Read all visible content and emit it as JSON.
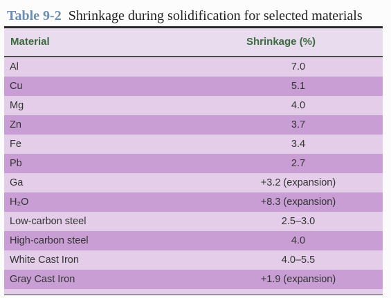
{
  "caption": {
    "number": "Table 9-2",
    "title": "Shrinkage during solidification for selected materials"
  },
  "table": {
    "headers": [
      "Material",
      "Shrinkage (%)"
    ],
    "rows": [
      {
        "material": "Al",
        "shrinkage": "7.0"
      },
      {
        "material": "Cu",
        "shrinkage": "5.1"
      },
      {
        "material": "Mg",
        "shrinkage": "4.0"
      },
      {
        "material": "Zn",
        "shrinkage": "3.7"
      },
      {
        "material": "Fe",
        "shrinkage": "3.4"
      },
      {
        "material": "Pb",
        "shrinkage": "2.7"
      },
      {
        "material": "Ga",
        "shrinkage": "+3.2 (expansion)"
      },
      {
        "material": "H₂O",
        "shrinkage": "+8.3 (expansion)"
      },
      {
        "material": "Low-carbon steel",
        "shrinkage": "2.5–3.0"
      },
      {
        "material": "High-carbon steel",
        "shrinkage": "4.0"
      },
      {
        "material": "White Cast Iron",
        "shrinkage": "4.0–5.5"
      },
      {
        "material": "Gray Cast Iron",
        "shrinkage": "+1.9 (expansion)"
      }
    ]
  },
  "colors": {
    "caption_number": "#6a8eb4",
    "header_text": "#3a6a3e",
    "row_light": "#e3cde8",
    "row_dark": "#c89ed4"
  }
}
